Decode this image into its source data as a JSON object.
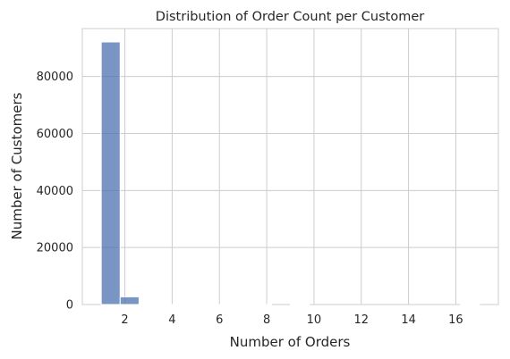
{
  "chart_data": {
    "type": "bar",
    "title": "Distribution of Order Count per Customer",
    "xlabel": "Number of Orders",
    "ylabel": "Number of Customers",
    "xlim": [
      0.2,
      17.8
    ],
    "ylim": [
      0,
      96800
    ],
    "xticks": [
      2,
      4,
      6,
      8,
      10,
      12,
      14,
      16
    ],
    "yticks": [
      0,
      20000,
      40000,
      60000,
      80000
    ],
    "grid": true,
    "bar_color": "#4c72b0",
    "bins": [
      {
        "x0": 1.0,
        "x1": 1.8,
        "value": 92100
      },
      {
        "x0": 1.8,
        "x1": 2.6,
        "value": 2700
      },
      {
        "x0": 2.6,
        "x1": 3.4,
        "value": 200
      },
      {
        "x0": 3.4,
        "x1": 4.2,
        "value": 30
      },
      {
        "x0": 4.2,
        "x1": 5.0,
        "value": 10
      },
      {
        "x0": 5.0,
        "x1": 5.8,
        "value": 5
      },
      {
        "x0": 5.8,
        "x1": 6.6,
        "value": 3
      },
      {
        "x0": 6.6,
        "x1": 7.4,
        "value": 2
      },
      {
        "x0": 7.4,
        "x1": 8.2,
        "value": 1
      },
      {
        "x0": 8.2,
        "x1": 9.0,
        "value": 0
      },
      {
        "x0": 9.0,
        "x1": 9.8,
        "value": 1
      },
      {
        "x0": 9.8,
        "x1": 10.6,
        "value": 0
      },
      {
        "x0": 10.6,
        "x1": 11.4,
        "value": 0
      },
      {
        "x0": 11.4,
        "x1": 12.2,
        "value": 0
      },
      {
        "x0": 12.2,
        "x1": 13.0,
        "value": 0
      },
      {
        "x0": 13.0,
        "x1": 13.8,
        "value": 0
      },
      {
        "x0": 13.8,
        "x1": 14.6,
        "value": 0
      },
      {
        "x0": 14.6,
        "x1": 15.4,
        "value": 0
      },
      {
        "x0": 15.4,
        "x1": 16.2,
        "value": 0
      },
      {
        "x0": 16.2,
        "x1": 17.0,
        "value": 1
      }
    ]
  }
}
